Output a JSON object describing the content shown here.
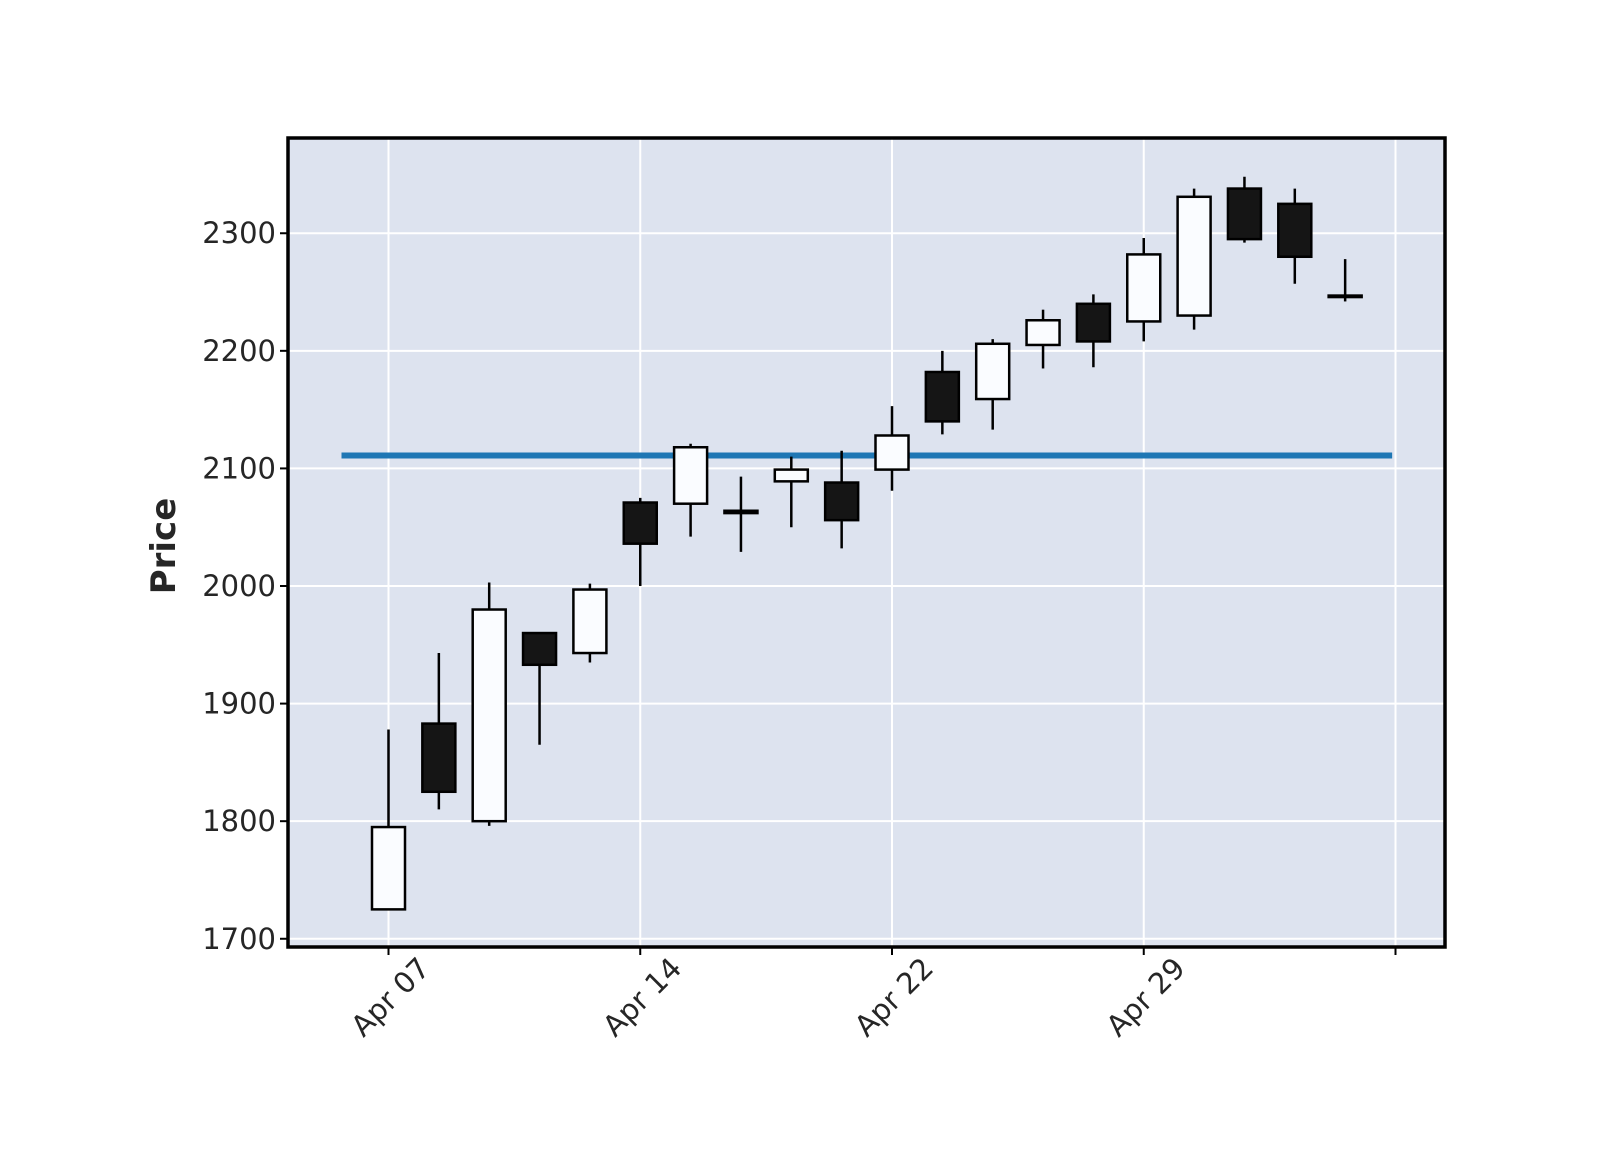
{
  "chart_data": {
    "type": "candlestick",
    "title": "",
    "xlabel": "",
    "ylabel": "Price",
    "ylim": [
      1693,
      2381
    ],
    "yticks": [
      1700,
      1800,
      1900,
      2000,
      2100,
      2200,
      2300
    ],
    "xticks": [
      {
        "label": "Apr 07",
        "index": 0
      },
      {
        "label": "Apr 14",
        "index": 5
      },
      {
        "label": "Apr 22",
        "index": 10
      },
      {
        "label": "Apr 29",
        "index": 15
      },
      {
        "label": "",
        "index": 20
      }
    ],
    "grid": true,
    "colors": {
      "background": "#dde3ef",
      "up": "#fafcff",
      "down": "#151515",
      "grid": "#ffffff",
      "hline": "#1f77b4",
      "frame": "#000000"
    },
    "hline": {
      "value": 2111
    },
    "candles": [
      {
        "open": 1725,
        "high": 1878,
        "low": 1725,
        "close": 1795
      },
      {
        "open": 1883,
        "high": 1943,
        "low": 1810,
        "close": 1825
      },
      {
        "open": 1800,
        "high": 2003,
        "low": 1796,
        "close": 1980
      },
      {
        "open": 1960,
        "high": 1960,
        "low": 1865,
        "close": 1933
      },
      {
        "open": 1943,
        "high": 2002,
        "low": 1935,
        "close": 1997
      },
      {
        "open": 2071,
        "high": 2075,
        "low": 2000,
        "close": 2036
      },
      {
        "open": 2070,
        "high": 2121,
        "low": 2042,
        "close": 2118
      },
      {
        "open": 2064,
        "high": 2093,
        "low": 2029,
        "close": 2062
      },
      {
        "open": 2089,
        "high": 2110,
        "low": 2050,
        "close": 2099
      },
      {
        "open": 2088,
        "high": 2115,
        "low": 2032,
        "close": 2056
      },
      {
        "open": 2099,
        "high": 2153,
        "low": 2081,
        "close": 2128
      },
      {
        "open": 2182,
        "high": 2200,
        "low": 2129,
        "close": 2140
      },
      {
        "open": 2159,
        "high": 2210,
        "low": 2133,
        "close": 2206
      },
      {
        "open": 2205,
        "high": 2235,
        "low": 2185,
        "close": 2226
      },
      {
        "open": 2240,
        "high": 2248,
        "low": 2186,
        "close": 2208
      },
      {
        "open": 2225,
        "high": 2296,
        "low": 2208,
        "close": 2282
      },
      {
        "open": 2230,
        "high": 2338,
        "low": 2218,
        "close": 2331
      },
      {
        "open": 2338,
        "high": 2348,
        "low": 2292,
        "close": 2295
      },
      {
        "open": 2325,
        "high": 2338,
        "low": 2257,
        "close": 2280
      },
      {
        "open": 2247,
        "high": 2278,
        "low": 2242,
        "close": 2246
      }
    ]
  }
}
